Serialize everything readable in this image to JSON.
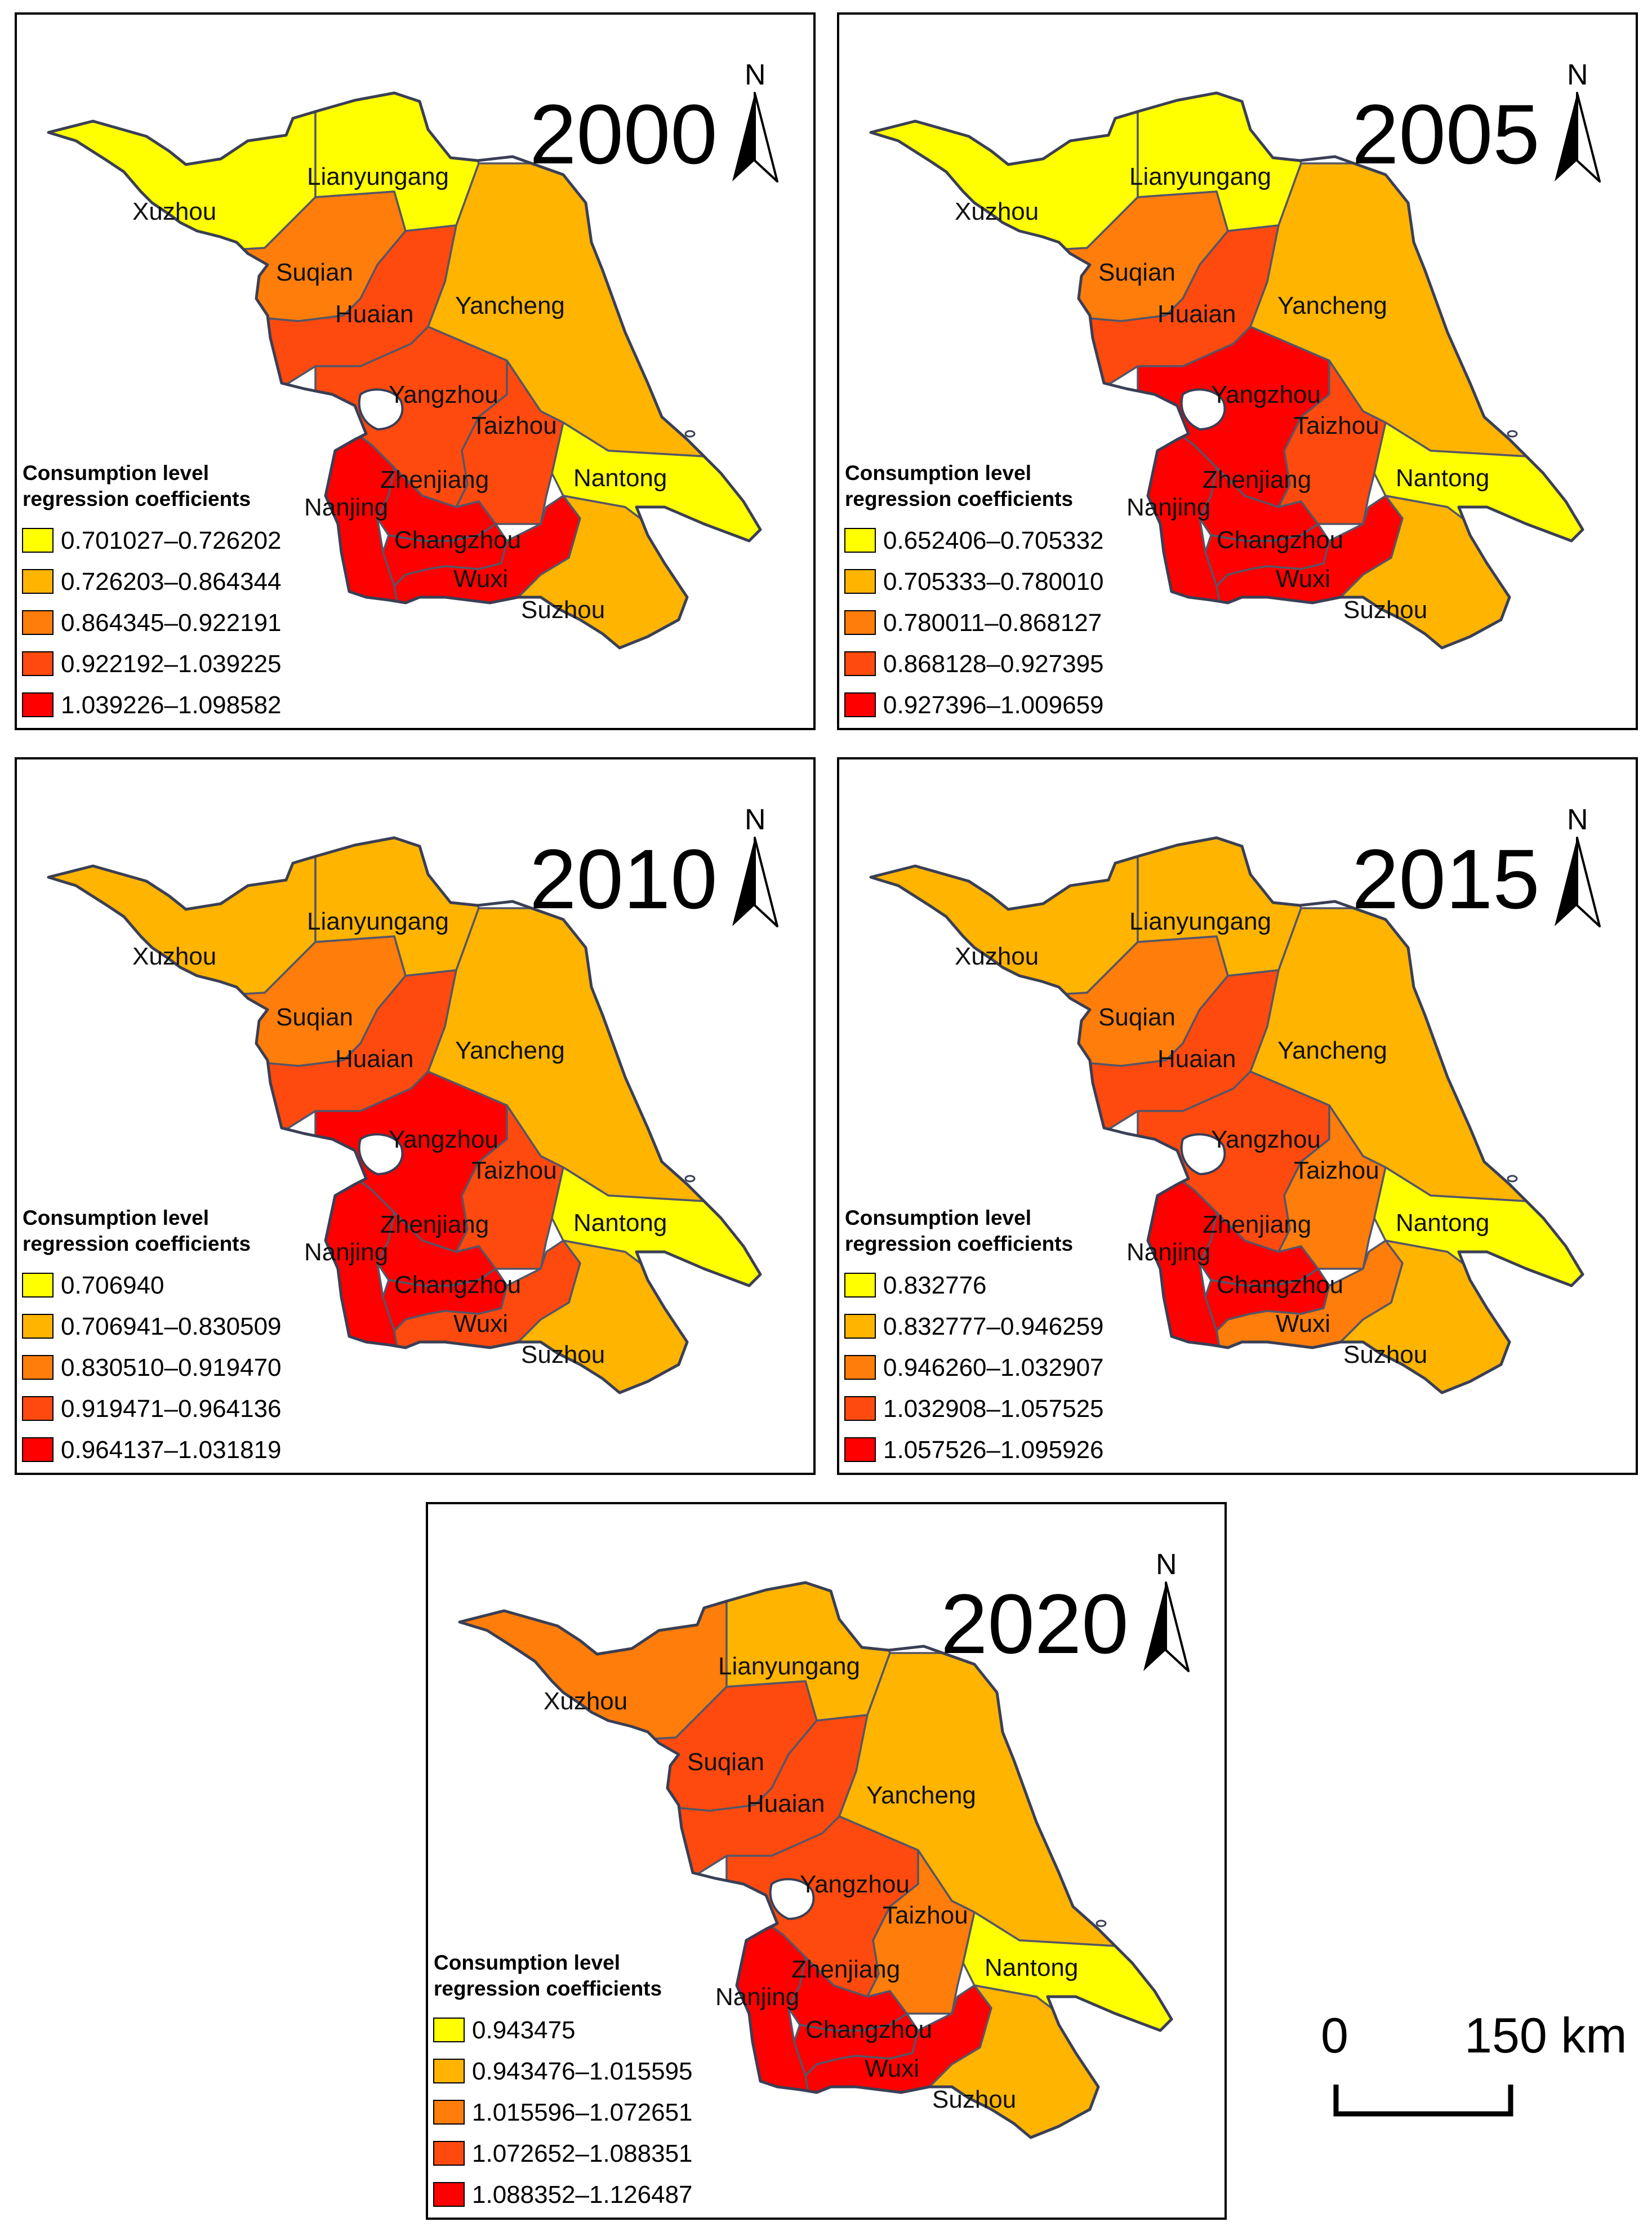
{
  "figure": {
    "colors": {
      "yellow": "#ffff00",
      "light_orange": "#ffb400",
      "orange": "#ff7d0a",
      "red_orange": "#ff4a0f",
      "red": "#ff0000",
      "border": "#555566",
      "outline": "#3a3f55"
    },
    "north_arrow_label": "N",
    "legend_title_line1": "Consumption level",
    "legend_title_line2": "regression coefficients",
    "scale_bar": {
      "start_label": "0",
      "end_label": "150 km"
    },
    "city_names": {
      "xuzhou": "Xuzhou",
      "lianyungang": "Lianyungang",
      "suqian": "Suqian",
      "huaian": "Huaian",
      "yancheng": "Yancheng",
      "yangzhou": "Yangzhou",
      "taizhou": "Taizhou",
      "nantong": "Nantong",
      "nanjing": "Nanjing",
      "zhenjiang": "Zhenjiang",
      "changzhou": "Changzhou",
      "wuxi": "Wuxi",
      "suzhou": "Suzhou"
    },
    "panels": [
      {
        "year": "2000",
        "legend": [
          "0.701027–0.726202",
          "0.726203–0.864344",
          "0.864345–0.922191",
          "0.922192–1.039225",
          "1.039226–1.098582"
        ],
        "classes": {
          "xuzhou": 0,
          "lianyungang": 0,
          "suqian": 2,
          "huaian": 3,
          "yancheng": 1,
          "yangzhou": 3,
          "taizhou": 3,
          "nantong": 0,
          "nanjing": 4,
          "zhenjiang": 4,
          "changzhou": 4,
          "wuxi": 4,
          "suzhou": 1
        }
      },
      {
        "year": "2005",
        "legend": [
          "0.652406–0.705332",
          "0.705333–0.780010",
          "0.780011–0.868127",
          "0.868128–0.927395",
          "0.927396–1.009659"
        ],
        "classes": {
          "xuzhou": 0,
          "lianyungang": 0,
          "suqian": 2,
          "huaian": 3,
          "yancheng": 1,
          "yangzhou": 4,
          "taizhou": 3,
          "nantong": 0,
          "nanjing": 4,
          "zhenjiang": 4,
          "changzhou": 4,
          "wuxi": 4,
          "suzhou": 1
        }
      },
      {
        "year": "2010",
        "legend": [
          "0.706940",
          "0.706941–0.830509",
          "0.830510–0.919470",
          "0.919471–0.964136",
          "0.964137–1.031819"
        ],
        "classes": {
          "xuzhou": 1,
          "lianyungang": 1,
          "suqian": 2,
          "huaian": 3,
          "yancheng": 1,
          "yangzhou": 4,
          "taizhou": 3,
          "nantong": 0,
          "nanjing": 4,
          "zhenjiang": 4,
          "changzhou": 4,
          "wuxi": 3,
          "suzhou": 1
        }
      },
      {
        "year": "2015",
        "legend": [
          "0.832776",
          "0.832777–0.946259",
          "0.946260–1.032907",
          "1.032908–1.057525",
          "1.057526–1.095926"
        ],
        "classes": {
          "xuzhou": 1,
          "lianyungang": 1,
          "suqian": 2,
          "huaian": 3,
          "yancheng": 1,
          "yangzhou": 3,
          "taizhou": 2,
          "nantong": 0,
          "nanjing": 4,
          "zhenjiang": 4,
          "changzhou": 4,
          "wuxi": 2,
          "suzhou": 1
        }
      },
      {
        "year": "2020",
        "legend": [
          "0.943475",
          "0.943476–1.015595",
          "1.015596–1.072651",
          "1.072652–1.088351",
          "1.088352–1.126487"
        ],
        "classes": {
          "xuzhou": 2,
          "lianyungang": 1,
          "suqian": 3,
          "huaian": 3,
          "yancheng": 1,
          "yangzhou": 3,
          "taizhou": 2,
          "nantong": 0,
          "nanjing": 4,
          "zhenjiang": 4,
          "changzhou": 4,
          "wuxi": 4,
          "suzhou": 1
        }
      }
    ]
  }
}
